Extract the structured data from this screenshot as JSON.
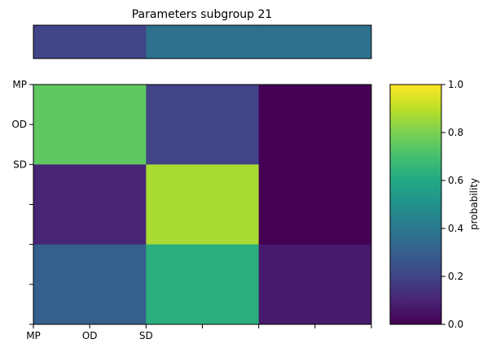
{
  "chart_data": [
    {
      "type": "heatmap",
      "title": "Parameters subgroup 21",
      "rows": 1,
      "cols": 3,
      "values": [
        [
          0.2,
          0.37,
          0.37
        ]
      ],
      "xlabel": "",
      "ylabel": ""
    },
    {
      "type": "heatmap",
      "title": "",
      "rows": 3,
      "cols": 3,
      "values": [
        [
          0.75,
          0.2,
          0.0
        ],
        [
          0.1,
          0.87,
          0.0
        ],
        [
          0.3,
          0.63,
          0.07
        ]
      ],
      "x_tick_labels": [
        "MP",
        "OD",
        "SD",
        "",
        "",
        "",
        ""
      ],
      "y_tick_labels": [
        "MP",
        "OD",
        "SD",
        "",
        "",
        "",
        ""
      ],
      "xlabel": "",
      "ylabel": ""
    }
  ],
  "colorbar": {
    "label": "probability",
    "range": [
      0,
      1
    ],
    "ticks": [
      "0.0",
      "0.2",
      "0.4",
      "0.6",
      "0.8",
      "1.0"
    ],
    "colormap": "viridis"
  }
}
